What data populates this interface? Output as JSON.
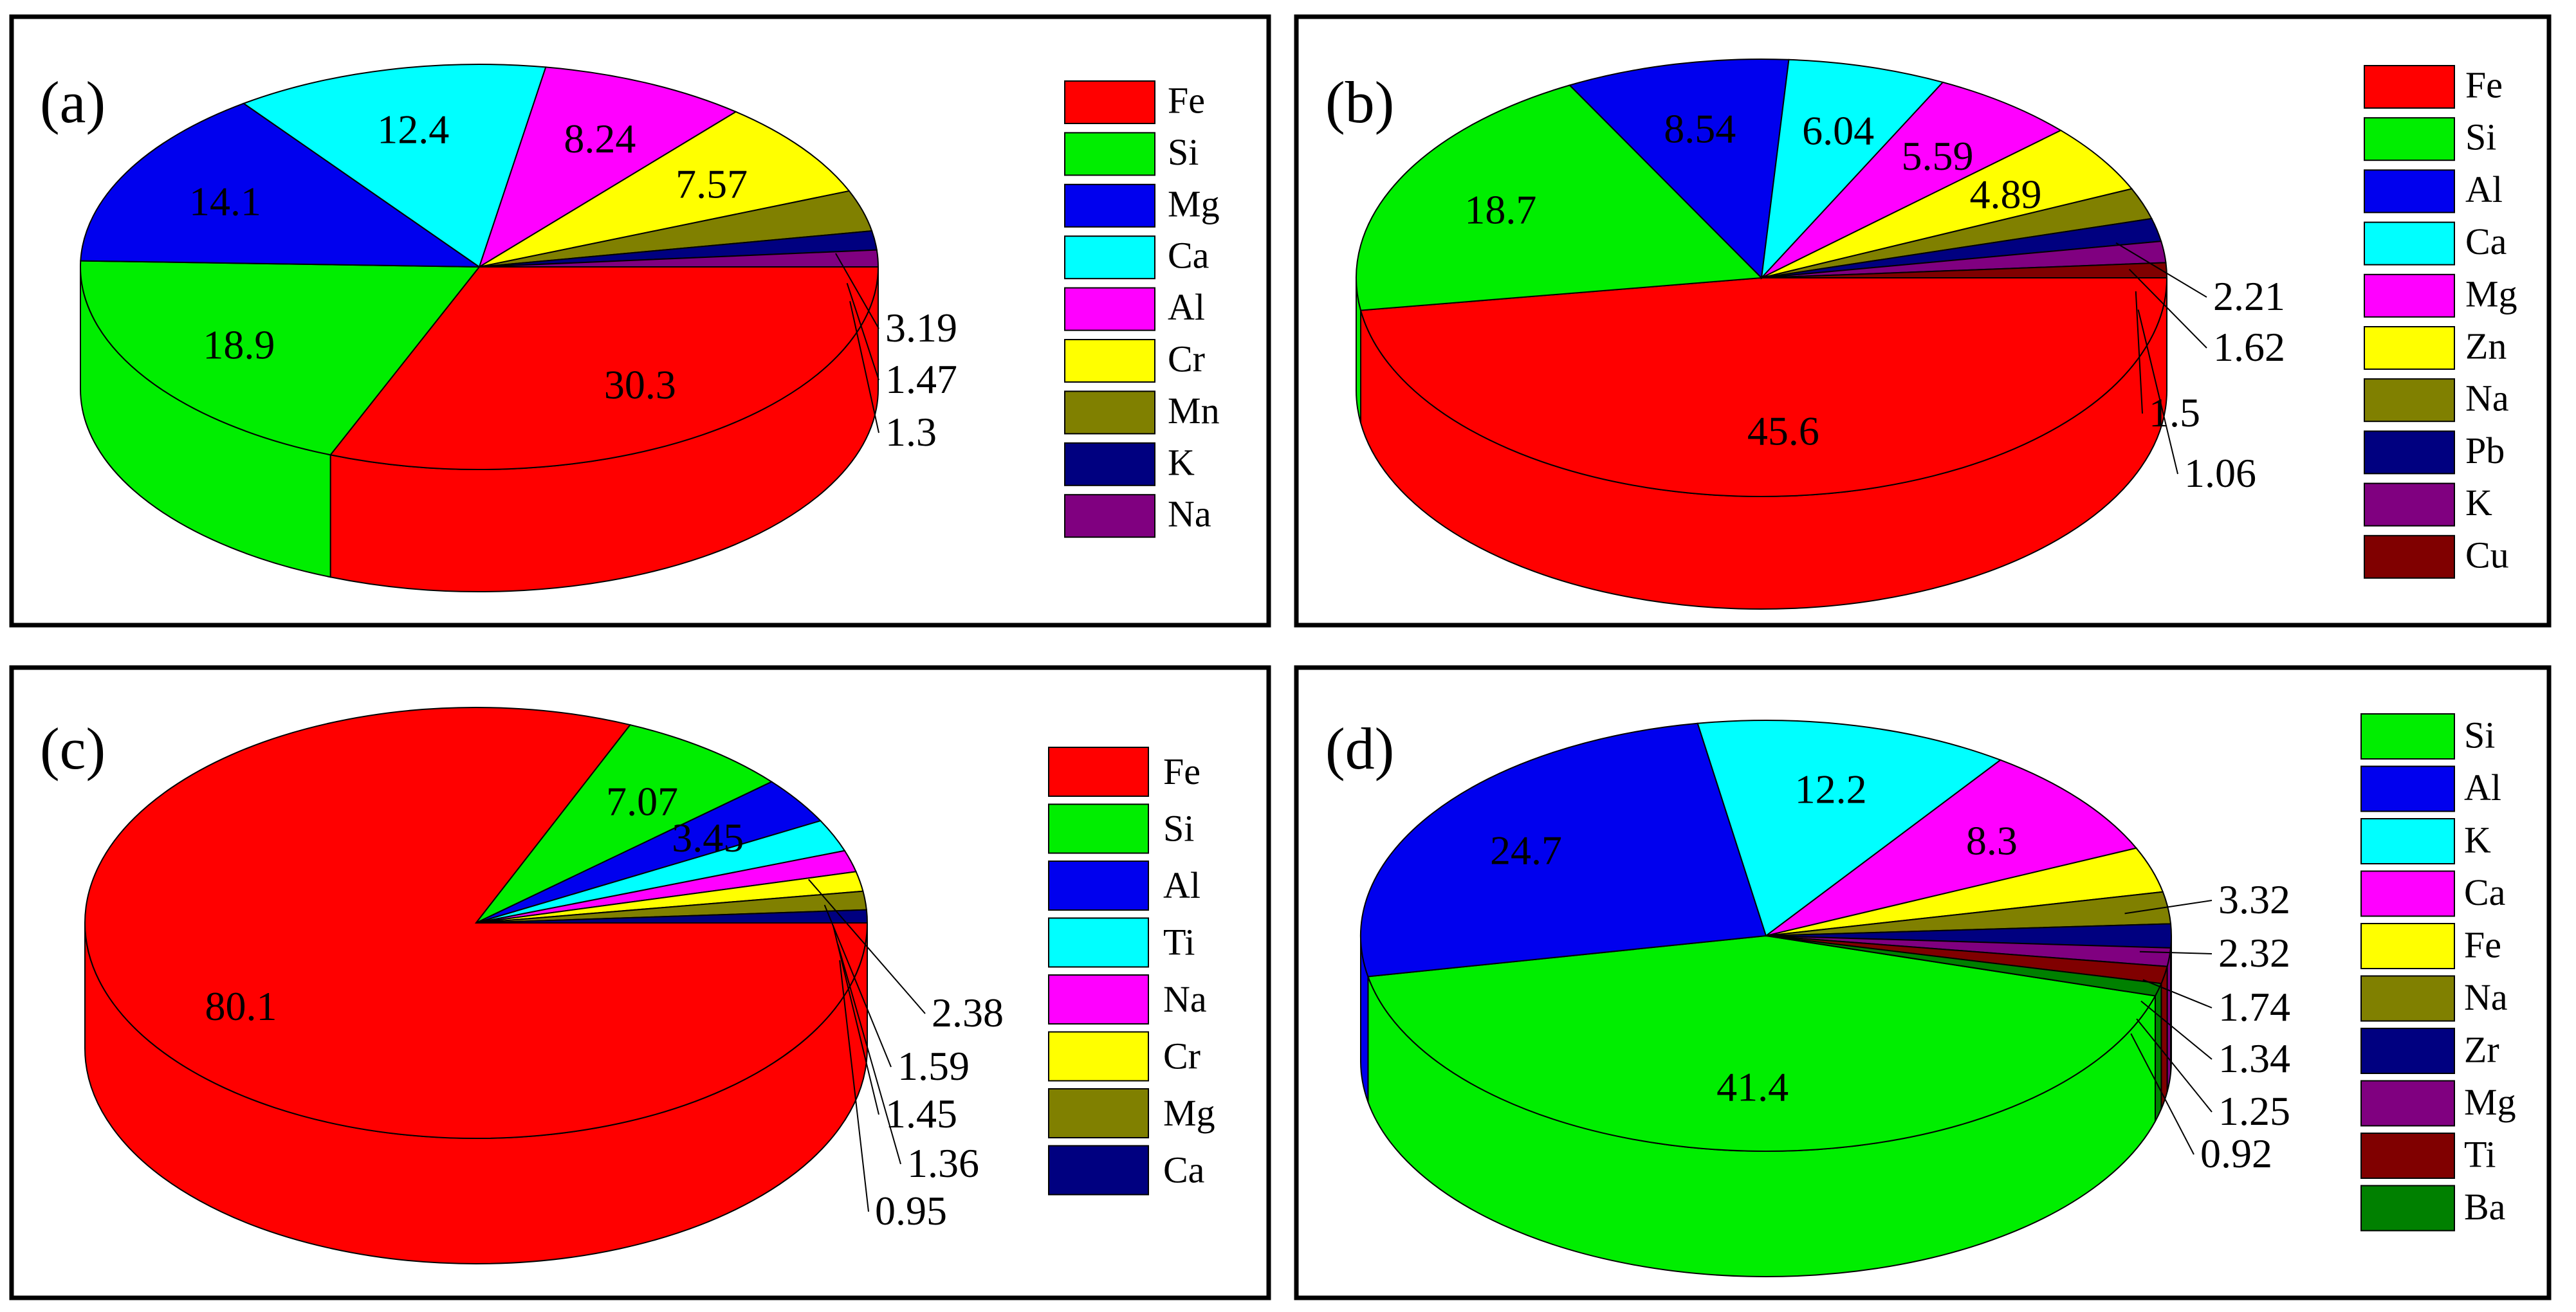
{
  "figure": {
    "panel_count": 4
  },
  "chart_data": [
    {
      "type": "pie",
      "panel_label": "(a)",
      "categories": [
        "Fe",
        "Si",
        "Mg",
        "Ca",
        "Al",
        "Cr",
        "Mn",
        "K",
        "Na"
      ],
      "values": [
        30.3,
        18.9,
        14.1,
        12.4,
        8.24,
        7.57,
        3.19,
        1.47,
        1.3
      ],
      "data_labels": [
        "30.3",
        "18.9",
        "14.1",
        "12.4",
        "8.24",
        "7.57",
        "3.19",
        "1.47",
        "1.3"
      ],
      "legend": [
        "Fe",
        "Si",
        "Mg",
        "Ca",
        "Al",
        "Cr",
        "Mn",
        "K",
        "Na"
      ],
      "legend_position": "right",
      "title": "",
      "xlabel": "",
      "ylabel": ""
    },
    {
      "type": "pie",
      "panel_label": "(b)",
      "categories": [
        "Fe",
        "Si",
        "Al",
        "Ca",
        "Mg",
        "Zn",
        "Na",
        "Pb",
        "K",
        "Cu"
      ],
      "values": [
        45.6,
        18.7,
        8.54,
        6.04,
        5.59,
        4.89,
        2.21,
        1.62,
        1.5,
        1.06
      ],
      "data_labels": [
        "45.6",
        "18.7",
        "8.54",
        "6.04",
        "5.59",
        "4.89",
        "2.21",
        "1.62",
        "1.5",
        "1.06"
      ],
      "legend": [
        "Fe",
        "Si",
        "Al",
        "Ca",
        "Mg",
        "Zn",
        "Na",
        "Pb",
        "K",
        "Cu"
      ],
      "legend_position": "right",
      "title": "",
      "xlabel": "",
      "ylabel": ""
    },
    {
      "type": "pie",
      "panel_label": "(c)",
      "categories": [
        "Fe",
        "Si",
        "Al",
        "Ti",
        "Na",
        "Cr",
        "Mg",
        "Ca"
      ],
      "values": [
        80.1,
        7.07,
        3.45,
        2.38,
        1.59,
        1.45,
        1.36,
        0.95
      ],
      "data_labels": [
        "80.1",
        "7.07",
        "3.45",
        "2.38",
        "1.59",
        "1.45",
        "1.36",
        "0.95"
      ],
      "legend": [
        "Fe",
        "Si",
        "Al",
        "Ti",
        "Na",
        "Cr",
        "Mg",
        "Ca"
      ],
      "legend_position": "right",
      "title": "",
      "xlabel": "",
      "ylabel": ""
    },
    {
      "type": "pie",
      "panel_label": "(d)",
      "categories": [
        "Si",
        "Al",
        "K",
        "Ca",
        "Fe",
        "Na",
        "Zr",
        "Mg",
        "Ti",
        "Ba"
      ],
      "values": [
        41.4,
        24.7,
        12.2,
        8.3,
        3.32,
        2.32,
        1.74,
        1.34,
        1.25,
        0.92
      ],
      "data_labels": [
        "41.4",
        "24.7",
        "12.2",
        "8.3",
        "3.32",
        "2.32",
        "1.74",
        "1.34",
        "1.25",
        "0.92"
      ],
      "legend": [
        "Si",
        "Al",
        "K",
        "Ca",
        "Fe",
        "Na",
        "Zr",
        "Mg",
        "Ti",
        "Ba"
      ],
      "legend_position": "right",
      "title": "",
      "xlabel": "",
      "ylabel": ""
    }
  ],
  "colors": {
    "Fe": "#ff0000",
    "Si": "#00ee00",
    "Mg": "#0000ee",
    "Ca": "#00ffff",
    "Al": "#ff00ff",
    "Cr": "#ffff00",
    "Mn": "#808000",
    "K": "#000080",
    "Na": "#800080",
    "Zn": "#ffff00",
    "Pb": "#000080",
    "Cu": "#800000",
    "Ti": "#800000",
    "Zr": "#000080",
    "Ba": "#008000"
  },
  "panel_colors": [
    [
      "#ff0000",
      "#00ee00",
      "#0000ee",
      "#00ffff",
      "#ff00ff",
      "#ffff00",
      "#808000",
      "#000080",
      "#800080"
    ],
    [
      "#ff0000",
      "#00ee00",
      "#0000ee",
      "#00ffff",
      "#ff00ff",
      "#ffff00",
      "#808000",
      "#000080",
      "#800080",
      "#800000"
    ],
    [
      "#ff0000",
      "#00ee00",
      "#0000ee",
      "#00ffff",
      "#ff00ff",
      "#ffff00",
      "#808000",
      "#000080"
    ],
    [
      "#00ee00",
      "#0000ee",
      "#00ffff",
      "#ff00ff",
      "#ffff00",
      "#808000",
      "#000080",
      "#800080",
      "#800000",
      "#008000"
    ]
  ]
}
